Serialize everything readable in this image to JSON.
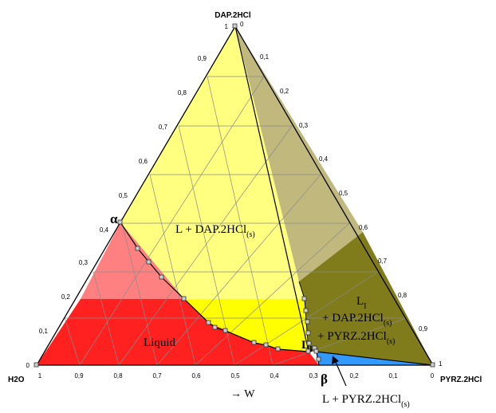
{
  "diagram": {
    "vertices": {
      "top": "DAP.2HCl",
      "left": "H2O",
      "right": "PYRZ.2HCl"
    },
    "ticks": {
      "bottom": [
        "1",
        "0,9",
        "0,8",
        "0,7",
        "0,6",
        "0,5",
        "0,4",
        "0,3",
        "0,2",
        "0,1",
        "0"
      ],
      "left": [
        "0",
        "0,1",
        "0,2",
        "0,3",
        "0,4",
        "0,5",
        "0,6",
        "0,7",
        "0,8",
        "0,9",
        "1"
      ],
      "right": [
        "0",
        "0,1",
        "0,2",
        "0,3",
        "0,4",
        "0,5",
        "0,6",
        "0,7",
        "0,8",
        "0,9",
        "1"
      ]
    },
    "axis_arrow_label": "→ W",
    "regions": {
      "dap_region": {
        "main": "L + DAP.2HCl",
        "sub": "(s)"
      },
      "liquid": {
        "main": "Liquid"
      },
      "three_phase": {
        "l1_main": "L",
        "l1_sub": "I",
        "line2_main": "+ DAP.2HCl",
        "line2_sub": "(s)",
        "line3_main": "+ PYRZ.2HCl",
        "line3_sub": "(s)"
      },
      "pyrz_region": {
        "main": "L + PYRZ.2HCl",
        "sub": "(s)"
      }
    },
    "point_labels": {
      "alpha": "α",
      "beta": "β",
      "li_main": "L",
      "li_sub": "I"
    },
    "colors": {
      "yellow_light": "#ffff80",
      "yellow": "#ffff00",
      "olive_light": "#c0b87c",
      "olive": "#807c1c",
      "red_light": "#ff8080",
      "red": "#ff2020",
      "blue": "#3399ff"
    }
  }
}
